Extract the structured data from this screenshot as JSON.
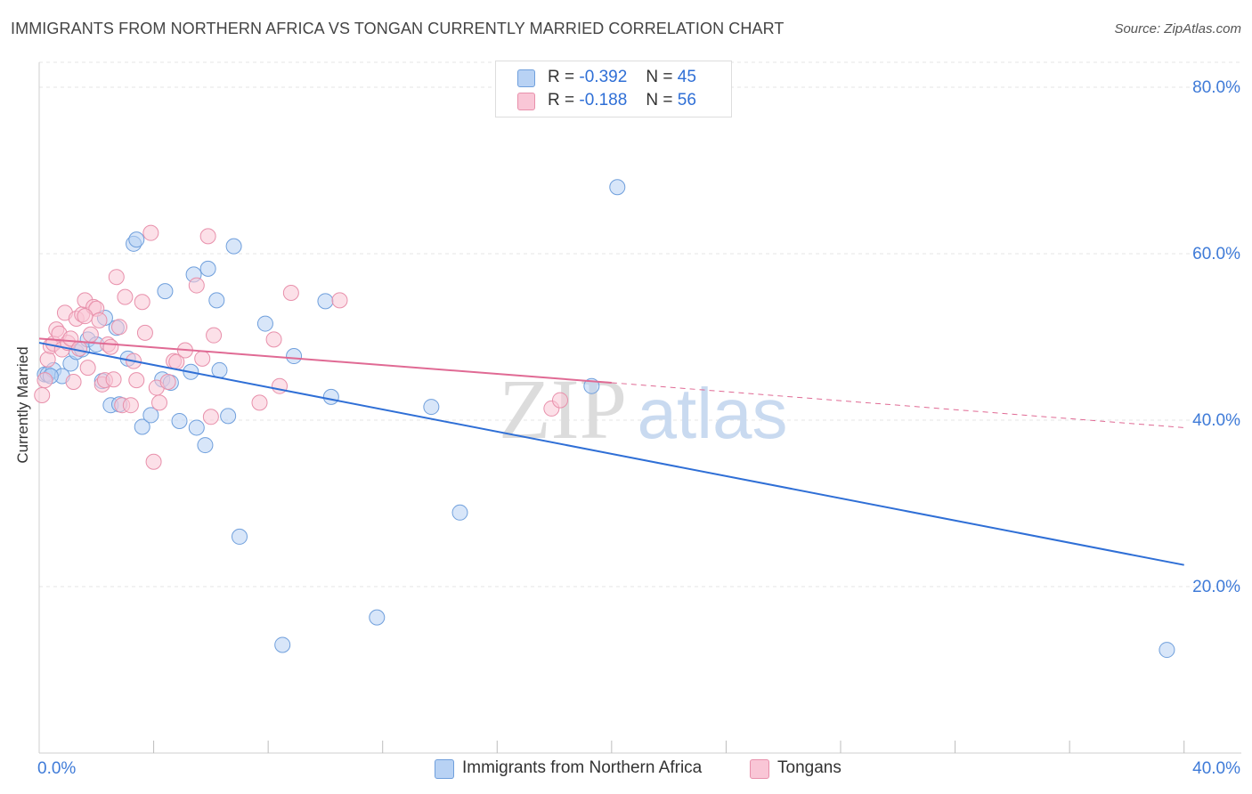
{
  "title": "IMMIGRANTS FROM NORTHERN AFRICA VS TONGAN CURRENTLY MARRIED CORRELATION CHART",
  "source": "Source: ZipAtlas.com",
  "watermark": {
    "zip": "ZIP",
    "atlas": "atlas"
  },
  "legend": {
    "r_label": "R =",
    "n_label": "N =",
    "rows": [
      {
        "r": "-0.392",
        "n": "45",
        "swatch_fill": "#b8d2f4",
        "swatch_stroke": "#6f9fdc"
      },
      {
        "r": "-0.188",
        "n": "56",
        "swatch_fill": "#f9c6d6",
        "swatch_stroke": "#e890ab"
      }
    ]
  },
  "bottom_legend": [
    "Immigrants from Northern Africa",
    "Tongans"
  ],
  "chart_data": {
    "type": "scatter",
    "title": "IMMIGRANTS FROM NORTHERN AFRICA VS TONGAN CURRENTLY MARRIED CORRELATION CHART",
    "xlabel": "",
    "ylabel": "Currently Married",
    "xlim": [
      0,
      42
    ],
    "ylim": [
      0,
      83
    ],
    "x_tick_labels": [
      {
        "value": 0,
        "label": "0.0%"
      },
      {
        "value": 40,
        "label": "40.0%"
      }
    ],
    "x_minor_ticks": [
      4,
      8,
      12,
      16,
      20,
      24,
      28,
      32,
      36,
      40
    ],
    "y_ticks": [
      {
        "value": 20,
        "label": "20.0%"
      },
      {
        "value": 40,
        "label": "40.0%"
      },
      {
        "value": 60,
        "label": "60.0%"
      },
      {
        "value": 80,
        "label": "80.0%"
      }
    ],
    "grid": true,
    "series": [
      {
        "name": "Immigrants from Northern Africa",
        "color": "#6f9fdc",
        "fill": "#b8d2f4",
        "points": [
          [
            0.2,
            45.5
          ],
          [
            0.3,
            45.5
          ],
          [
            0.5,
            46
          ],
          [
            0.8,
            45.3
          ],
          [
            1.1,
            46.8
          ],
          [
            1.3,
            48.2
          ],
          [
            1.5,
            48.5
          ],
          [
            1.7,
            49.7
          ],
          [
            2.0,
            49.1
          ],
          [
            2.2,
            44.7
          ],
          [
            2.3,
            52.3
          ],
          [
            2.5,
            41.8
          ],
          [
            2.7,
            51.1
          ],
          [
            2.8,
            41.9
          ],
          [
            3.1,
            47.4
          ],
          [
            3.3,
            61.2
          ],
          [
            3.4,
            61.7
          ],
          [
            3.6,
            39.2
          ],
          [
            3.9,
            40.6
          ],
          [
            4.3,
            44.9
          ],
          [
            4.4,
            55.5
          ],
          [
            4.6,
            44.5
          ],
          [
            4.9,
            39.9
          ],
          [
            5.3,
            45.8
          ],
          [
            5.4,
            57.5
          ],
          [
            5.5,
            39.1
          ],
          [
            5.8,
            37
          ],
          [
            5.9,
            58.2
          ],
          [
            6.2,
            54.4
          ],
          [
            6.3,
            46
          ],
          [
            6.6,
            40.5
          ],
          [
            6.8,
            60.9
          ],
          [
            7.0,
            26
          ],
          [
            7.9,
            51.6
          ],
          [
            8.5,
            13
          ],
          [
            8.9,
            47.7
          ],
          [
            10.0,
            54.3
          ],
          [
            10.2,
            42.8
          ],
          [
            11.8,
            16.3
          ],
          [
            13.7,
            41.6
          ],
          [
            14.7,
            28.9
          ],
          [
            19.3,
            44.1
          ],
          [
            20.2,
            68
          ],
          [
            39.4,
            12.4
          ],
          [
            0.4,
            45.3
          ]
        ]
      },
      {
        "name": "Tongans",
        "color": "#e890ab",
        "fill": "#f9c6d6",
        "points": [
          [
            0.1,
            43
          ],
          [
            0.2,
            44.8
          ],
          [
            0.3,
            47.3
          ],
          [
            0.4,
            48.9
          ],
          [
            0.5,
            49.2
          ],
          [
            0.6,
            50.9
          ],
          [
            0.7,
            50.4
          ],
          [
            0.8,
            48.5
          ],
          [
            0.9,
            52.9
          ],
          [
            1.0,
            49.3
          ],
          [
            1.1,
            49.8
          ],
          [
            1.2,
            44.6
          ],
          [
            1.3,
            52.2
          ],
          [
            1.4,
            48.6
          ],
          [
            1.5,
            52.7
          ],
          [
            1.6,
            54.4
          ],
          [
            1.7,
            46.3
          ],
          [
            1.8,
            50.3
          ],
          [
            1.9,
            53.6
          ],
          [
            2.0,
            53.4
          ],
          [
            2.1,
            52.0
          ],
          [
            2.2,
            44.3
          ],
          [
            2.3,
            44.8
          ],
          [
            2.4,
            49.1
          ],
          [
            2.5,
            48.8
          ],
          [
            2.6,
            44.9
          ],
          [
            2.7,
            57.2
          ],
          [
            2.8,
            51.2
          ],
          [
            2.9,
            41.8
          ],
          [
            3.0,
            54.8
          ],
          [
            3.2,
            41.8
          ],
          [
            3.3,
            47.1
          ],
          [
            3.6,
            54.2
          ],
          [
            3.7,
            50.5
          ],
          [
            3.9,
            62.5
          ],
          [
            4.0,
            35
          ],
          [
            4.1,
            43.9
          ],
          [
            4.2,
            42.1
          ],
          [
            4.5,
            44.6
          ],
          [
            4.7,
            47.1
          ],
          [
            4.8,
            47.0
          ],
          [
            5.1,
            48.4
          ],
          [
            5.5,
            56.2
          ],
          [
            5.7,
            47.4
          ],
          [
            5.9,
            62.1
          ],
          [
            6.0,
            40.4
          ],
          [
            6.1,
            50.2
          ],
          [
            7.7,
            42.1
          ],
          [
            8.2,
            49.7
          ],
          [
            8.4,
            44.1
          ],
          [
            8.8,
            55.3
          ],
          [
            10.5,
            54.4
          ],
          [
            17.9,
            41.4
          ],
          [
            18.2,
            42.4
          ],
          [
            3.4,
            44.8
          ],
          [
            1.6,
            52.5
          ]
        ]
      }
    ],
    "trend_lines": [
      {
        "series": "Immigrants from Northern Africa",
        "color": "#2f6fd6",
        "x": [
          0,
          40
        ],
        "y": [
          49.3,
          22.6
        ],
        "dashed": false
      },
      {
        "series": "Tongans",
        "color": "#e06a94",
        "x": [
          0,
          20
        ],
        "y": [
          49.8,
          44.5
        ],
        "dashed": false
      },
      {
        "series": "Tongans",
        "color": "#e06a94",
        "x": [
          20,
          40
        ],
        "y": [
          44.5,
          39.1
        ],
        "dashed": true
      }
    ]
  }
}
